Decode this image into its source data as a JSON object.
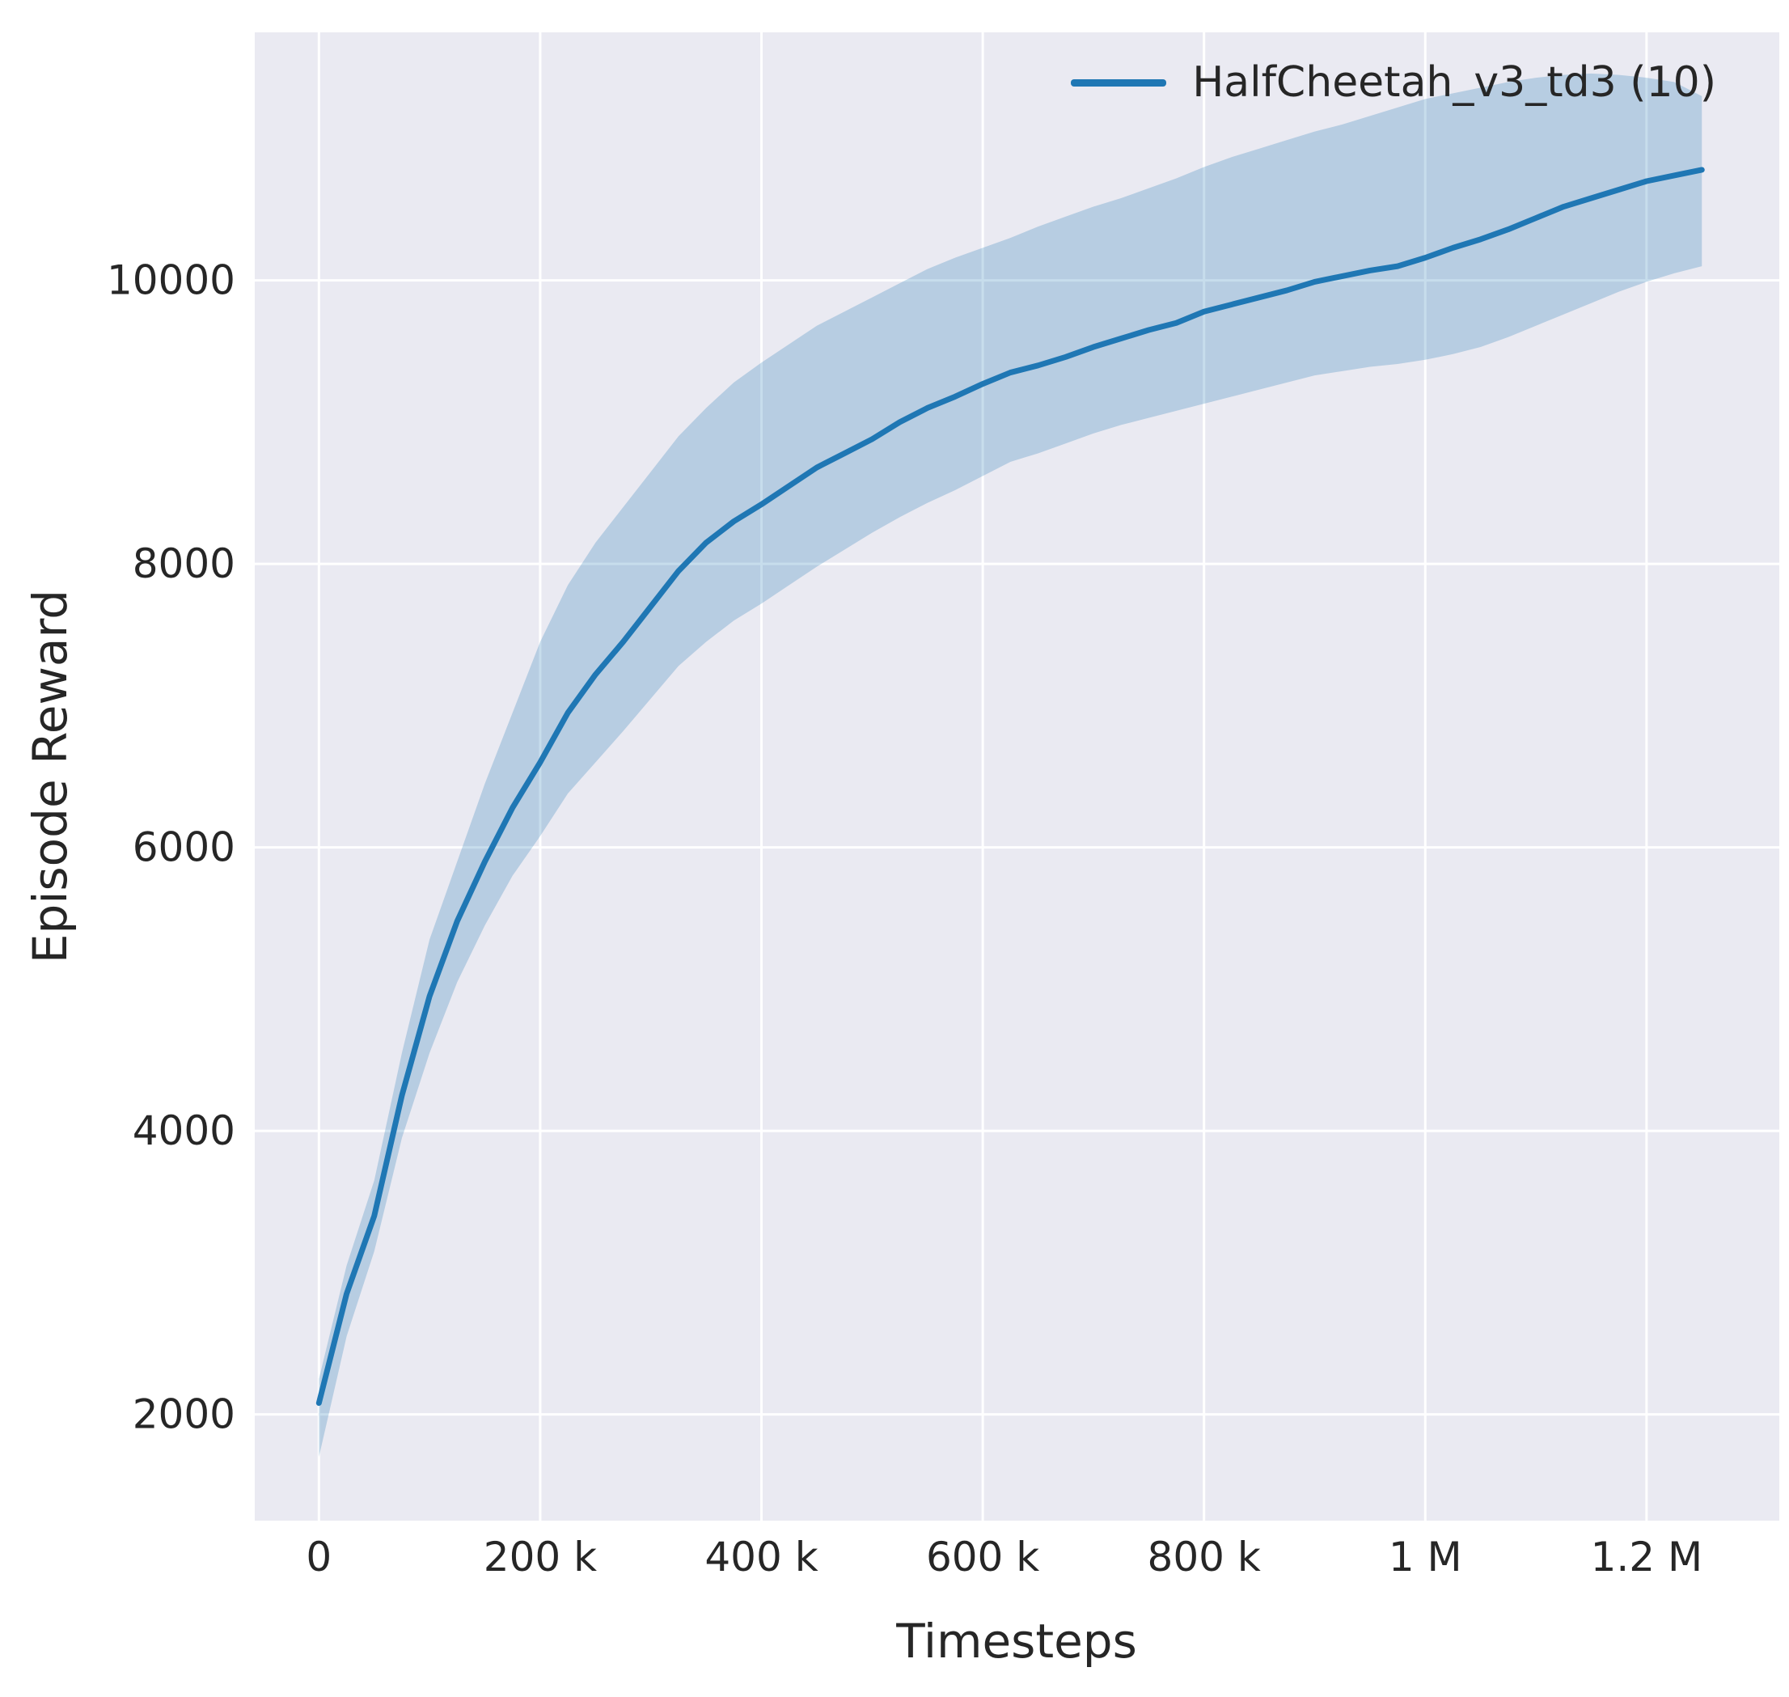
{
  "figure": {
    "background": "#ffffff"
  },
  "chart_data": {
    "type": "line",
    "title": "",
    "xlabel": "Timesteps",
    "ylabel": "Episode Reward",
    "legend": {
      "label": "HalfCheetah_v3_td3 (10)",
      "position": "upper right"
    },
    "style": {
      "plot_bg": "#eaeaf2",
      "grid_color": "#ffffff",
      "line_color": "#1f77b4",
      "band_color": "#1f77b4",
      "band_opacity": 0.25,
      "text_color": "#262626",
      "grid_on": true
    },
    "xlim": [
      -58000,
      1320000
    ],
    "ylim": [
      1250,
      11750
    ],
    "x_ticks": {
      "values": [
        0,
        200000,
        400000,
        600000,
        800000,
        1000000,
        1200000
      ],
      "labels": [
        "0",
        "200 k",
        "400 k",
        "600 k",
        "800 k",
        "1 M",
        "1.2 M"
      ]
    },
    "y_ticks": {
      "values": [
        2000,
        4000,
        6000,
        8000,
        10000
      ],
      "labels": [
        "2000",
        "4000",
        "6000",
        "8000",
        "10000"
      ]
    },
    "series": [
      {
        "name": "HalfCheetah_v3_td3 (10)",
        "x": [
          0,
          25000,
          50000,
          75000,
          100000,
          125000,
          150000,
          175000,
          200000,
          225000,
          250000,
          275000,
          300000,
          325000,
          350000,
          375000,
          400000,
          425000,
          450000,
          475000,
          500000,
          525000,
          550000,
          575000,
          600000,
          625000,
          650000,
          675000,
          700000,
          725000,
          750000,
          775000,
          800000,
          825000,
          850000,
          875000,
          900000,
          925000,
          950000,
          975000,
          1000000,
          1025000,
          1050000,
          1075000,
          1100000,
          1125000,
          1150000,
          1175000,
          1200000,
          1225000,
          1250000
        ],
        "mean": [
          2080,
          2850,
          3400,
          4250,
          4950,
          5480,
          5900,
          6280,
          6600,
          6950,
          7220,
          7450,
          7700,
          7950,
          8150,
          8300,
          8420,
          8550,
          8680,
          8780,
          8880,
          9000,
          9100,
          9180,
          9270,
          9350,
          9400,
          9460,
          9530,
          9590,
          9650,
          9700,
          9780,
          9830,
          9880,
          9930,
          9990,
          10030,
          10070,
          10100,
          10160,
          10230,
          10290,
          10360,
          10440,
          10520,
          10580,
          10640,
          10700,
          10740,
          10780
        ],
        "lower": [
          1700,
          2550,
          3150,
          3950,
          4550,
          5050,
          5450,
          5800,
          6080,
          6380,
          6600,
          6820,
          7050,
          7280,
          7450,
          7600,
          7720,
          7850,
          7980,
          8100,
          8220,
          8330,
          8430,
          8520,
          8620,
          8720,
          8780,
          8850,
          8920,
          8980,
          9030,
          9080,
          9130,
          9180,
          9230,
          9280,
          9330,
          9360,
          9390,
          9410,
          9440,
          9480,
          9530,
          9600,
          9680,
          9760,
          9840,
          9920,
          9990,
          10050,
          10100
        ],
        "upper": [
          2250,
          3050,
          3650,
          4550,
          5350,
          5900,
          6450,
          6950,
          7450,
          7850,
          8150,
          8400,
          8650,
          8900,
          9100,
          9280,
          9420,
          9550,
          9680,
          9780,
          9880,
          9980,
          10080,
          10160,
          10230,
          10300,
          10380,
          10450,
          10520,
          10580,
          10650,
          10720,
          10800,
          10870,
          10930,
          10990,
          11050,
          11100,
          11160,
          11220,
          11280,
          11320,
          11360,
          11400,
          11430,
          11450,
          11460,
          11450,
          11430,
          11400,
          11300
        ]
      }
    ]
  }
}
